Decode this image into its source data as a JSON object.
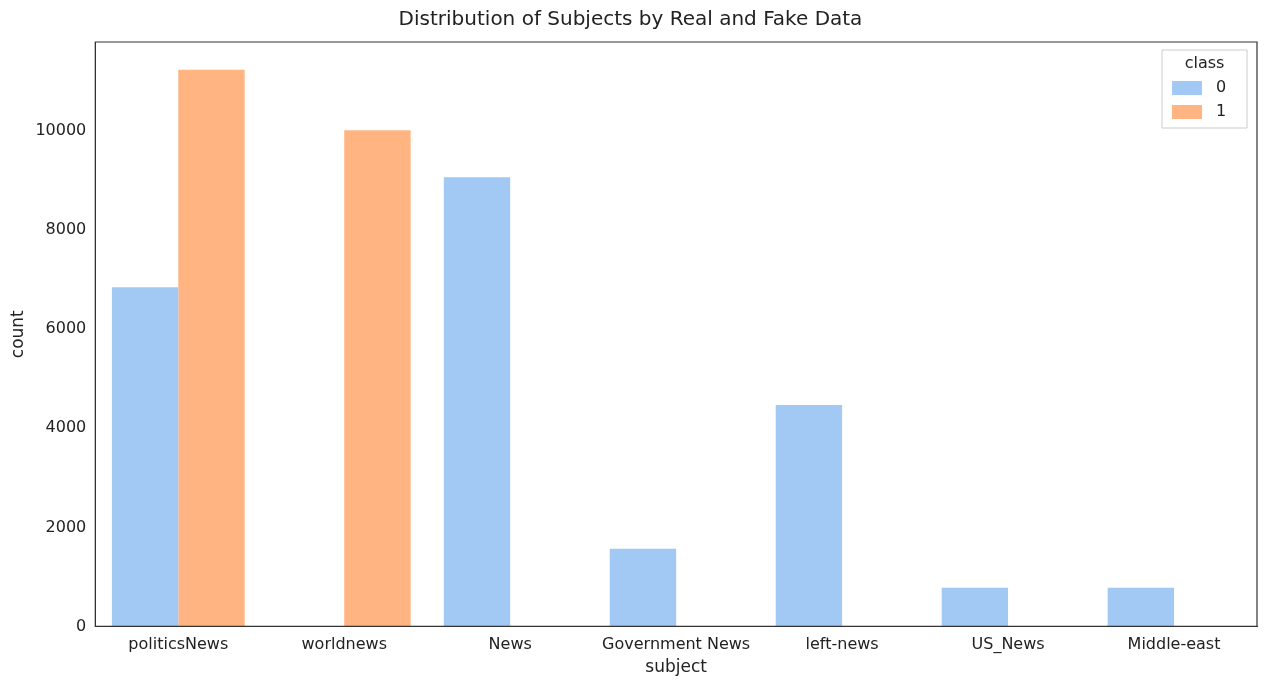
{
  "chart_data": {
    "type": "bar",
    "title": "Distribution of Subjects by Real and Fake Data",
    "xlabel": "subject",
    "ylabel": "count",
    "legend_title": "class",
    "categories": [
      "politicsNews",
      "worldnews",
      "News",
      "Government News",
      "left-news",
      "US_News",
      "Middle-east"
    ],
    "series": [
      {
        "name": "0",
        "color": "#a1c9f4",
        "values": [
          6850,
          null,
          9070,
          1570,
          4470,
          780,
          780
        ]
      },
      {
        "name": "1",
        "color": "#ffb482",
        "values": [
          11240,
          10020,
          null,
          null,
          null,
          null,
          null
        ]
      }
    ],
    "ylim": [
      0,
      11800
    ],
    "yticks": [
      0,
      2000,
      4000,
      6000,
      8000,
      10000
    ],
    "grid": false,
    "legend": "top right"
  }
}
